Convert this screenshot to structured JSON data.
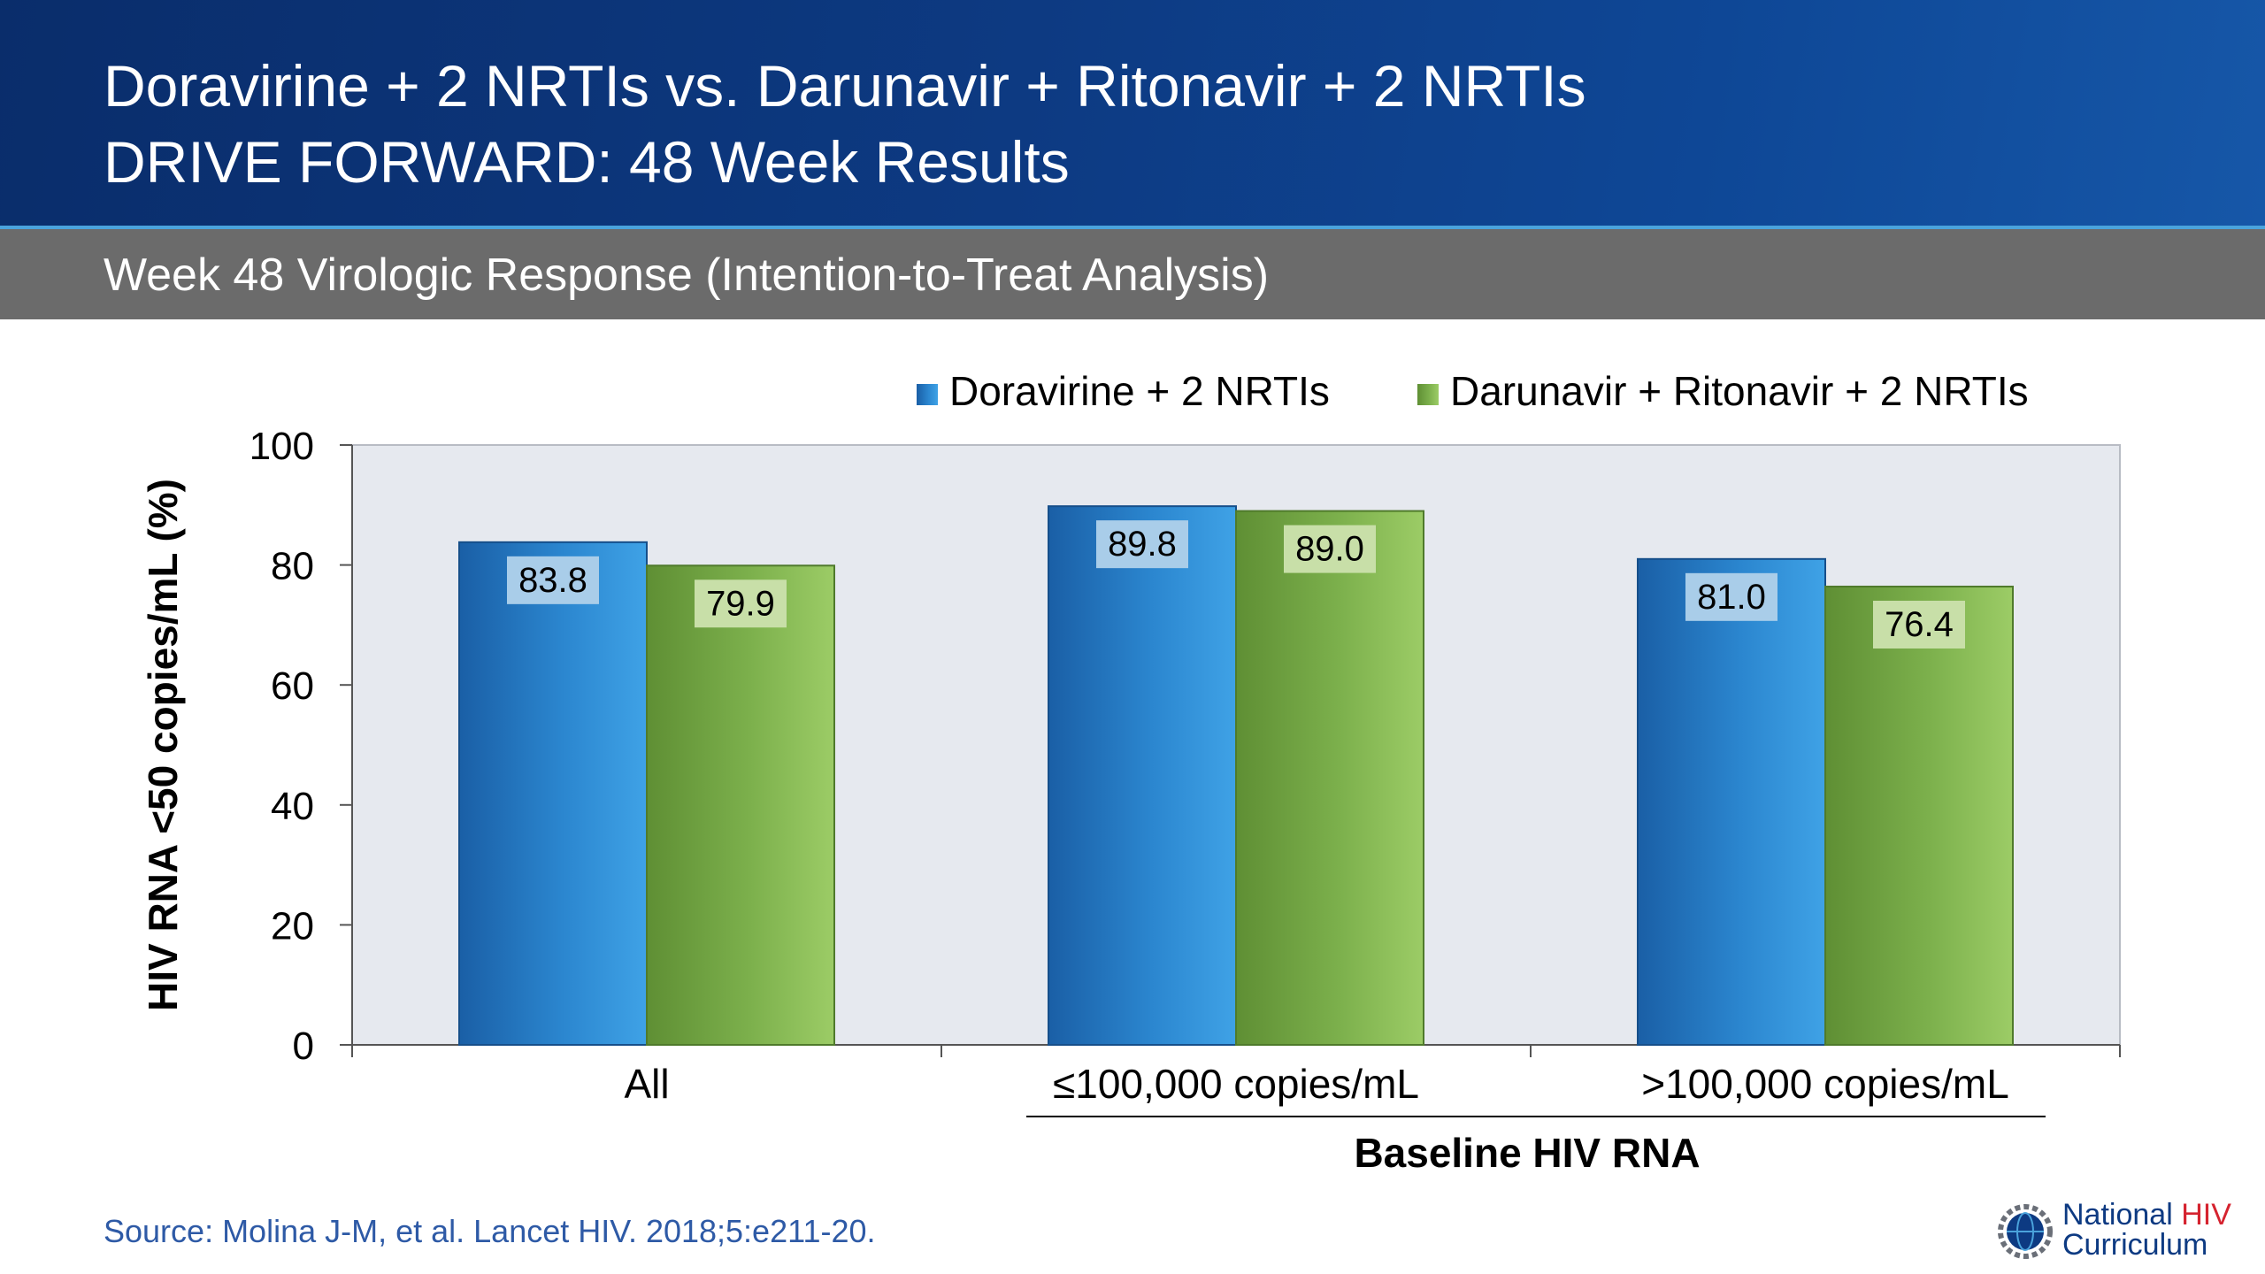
{
  "header": {
    "title_line1": "Doravirine + 2 NRTIs vs. Darunavir + Ritonavir + 2 NRTIs",
    "title_line2": "DRIVE FORWARD: 48 Week Results",
    "subtitle": "Week 48 Virologic Response (Intention-to-Treat Analysis)"
  },
  "chart_data": {
    "type": "bar",
    "categories": [
      "All",
      "≤100,000 copies/mL",
      ">100,000 copies/mL"
    ],
    "series": [
      {
        "name": "Doravirine + 2 NRTIs",
        "values": [
          83.8,
          89.8,
          81.0
        ],
        "labels": [
          "83.8",
          "89.8",
          "81.0"
        ],
        "color": "#2a86cf"
      },
      {
        "name": "Darunavir + Ritonavir + 2 NRTIs",
        "values": [
          79.9,
          89.0,
          76.4
        ],
        "labels": [
          "79.9",
          "89.0",
          "76.4"
        ],
        "color": "#7cb04c"
      }
    ],
    "ylabel": "HIV RNA <50 copies/mL (%)",
    "xgroup_label": "Baseline HIV RNA",
    "ylim": [
      0,
      100
    ],
    "yticks": [
      0,
      20,
      40,
      60,
      80,
      100
    ],
    "grid": false,
    "legend_position": "top-right",
    "plot_background": "#e6e9ef"
  },
  "source": "Source: Molina J-M, et al. Lancet HIV. 2018;5:e211-20.",
  "logo": {
    "line1_main": "National ",
    "line1_accent": "HIV",
    "line2": "Curriculum",
    "icon": "gear-globe-icon"
  }
}
